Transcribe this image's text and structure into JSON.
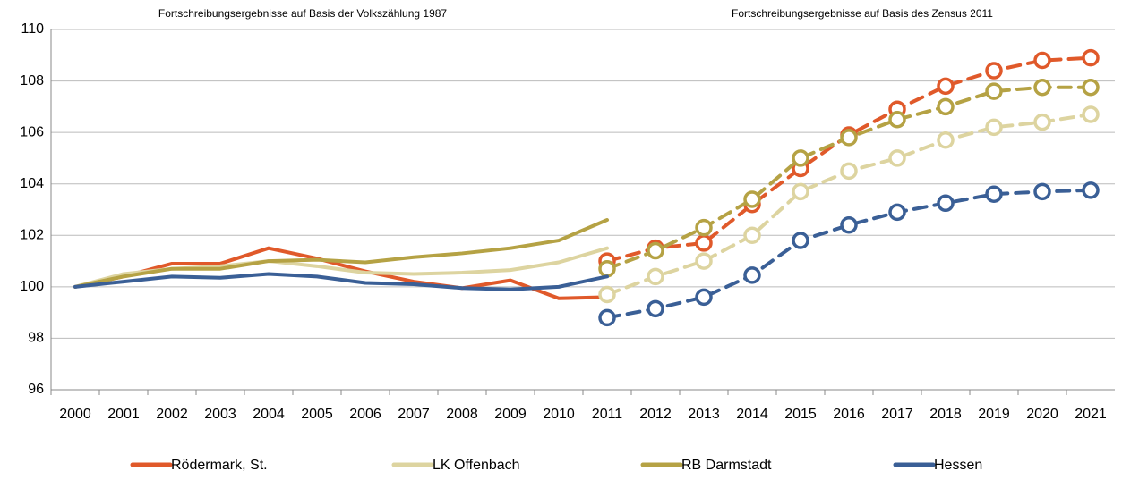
{
  "chart_data": {
    "type": "line",
    "annotations": [
      "Fortschreibungsergebnisse auf Basis der Volkszählung 1987",
      "Fortschreibungsergebnisse auf Basis des Zensus 2011"
    ],
    "categories": [
      "2000",
      "2001",
      "2002",
      "2003",
      "2004",
      "2005",
      "2006",
      "2007",
      "2008",
      "2009",
      "2010",
      "2011",
      "2012",
      "2013",
      "2014",
      "2015",
      "2016",
      "2017",
      "2018",
      "2019",
      "2020",
      "2021"
    ],
    "ylim": [
      96,
      110
    ],
    "yticks": [
      96,
      98,
      100,
      102,
      104,
      106,
      108,
      110
    ],
    "grid": true,
    "series": [
      {
        "name": "Rödermark, St.",
        "color": "#e0592a",
        "values": [
          100,
          100.4,
          100.9,
          100.9,
          101.5,
          101.1,
          100.6,
          100.2,
          99.95,
          100.25,
          99.55,
          99.6,
          null,
          null,
          null,
          null,
          null,
          null,
          null,
          null,
          null,
          null
        ],
        "values_zensus": [
          null,
          null,
          null,
          null,
          null,
          null,
          null,
          null,
          null,
          null,
          null,
          101.0,
          101.5,
          101.7,
          103.2,
          104.6,
          105.9,
          106.9,
          107.8,
          108.4,
          108.8,
          108.9
        ]
      },
      {
        "name": "LK Offenbach",
        "color": "#ddd4a0",
        "values": [
          100,
          100.5,
          100.7,
          100.8,
          101.0,
          100.8,
          100.55,
          100.5,
          100.55,
          100.65,
          100.95,
          101.5,
          null,
          null,
          null,
          null,
          null,
          null,
          null,
          null,
          null,
          null
        ],
        "values_zensus": [
          null,
          null,
          null,
          null,
          null,
          null,
          null,
          null,
          null,
          null,
          null,
          99.7,
          100.4,
          101.0,
          102.0,
          103.7,
          104.5,
          105.0,
          105.7,
          106.2,
          106.4,
          106.7
        ]
      },
      {
        "name": "RB Darmstadt",
        "color": "#b5a244",
        "values": [
          100,
          100.4,
          100.7,
          100.7,
          101.0,
          101.05,
          100.95,
          101.15,
          101.3,
          101.5,
          101.8,
          102.6,
          null,
          null,
          null,
          null,
          null,
          null,
          null,
          null,
          null,
          null
        ],
        "values_zensus": [
          null,
          null,
          null,
          null,
          null,
          null,
          null,
          null,
          null,
          null,
          null,
          100.7,
          101.4,
          102.3,
          103.4,
          105.0,
          105.8,
          106.5,
          107.0,
          107.6,
          107.75,
          107.75
        ]
      },
      {
        "name": "Hessen",
        "color": "#3a5f96",
        "values": [
          100,
          100.2,
          100.4,
          100.35,
          100.5,
          100.4,
          100.15,
          100.1,
          99.95,
          99.9,
          100.0,
          100.4,
          null,
          null,
          null,
          null,
          null,
          null,
          null,
          null,
          null,
          null
        ],
        "values_zensus": [
          null,
          null,
          null,
          null,
          null,
          null,
          null,
          null,
          null,
          null,
          null,
          98.8,
          99.15,
          99.6,
          100.45,
          101.8,
          102.4,
          102.9,
          103.25,
          103.6,
          103.7,
          103.75
        ]
      }
    ]
  }
}
